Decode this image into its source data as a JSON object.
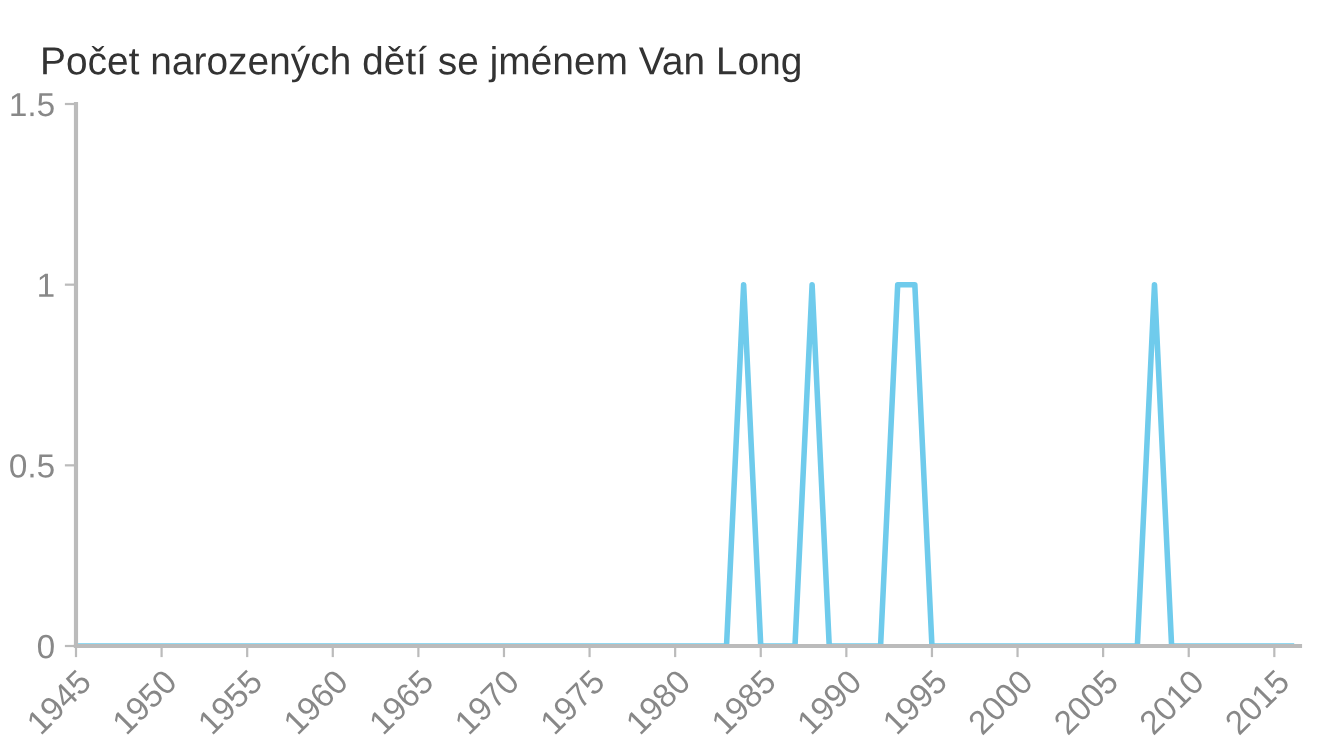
{
  "chart_data": {
    "type": "line",
    "title": "Počet narozených dětí se jménem Van Long",
    "x": [
      1945,
      1983,
      1984,
      1985,
      1987,
      1988,
      1989,
      1992,
      1993,
      1994,
      1995,
      2007,
      2008,
      2009,
      2016
    ],
    "series": [
      {
        "color": "#6fcbec",
        "values": [
          0,
          0,
          1,
          0,
          0,
          1,
          0,
          0,
          1,
          1,
          0,
          0,
          1,
          0,
          0
        ]
      }
    ],
    "xlim": [
      1945,
      2016.5
    ],
    "xticks": [
      1945,
      1950,
      1955,
      1960,
      1965,
      1970,
      1975,
      1980,
      1985,
      1990,
      1995,
      2000,
      2005,
      2010,
      2015
    ],
    "ylim": [
      0,
      1.5
    ],
    "yticks": [
      0,
      0.5,
      1,
      1.5
    ],
    "grid": false,
    "legend": false,
    "marker": "none",
    "line_style": "solid"
  }
}
